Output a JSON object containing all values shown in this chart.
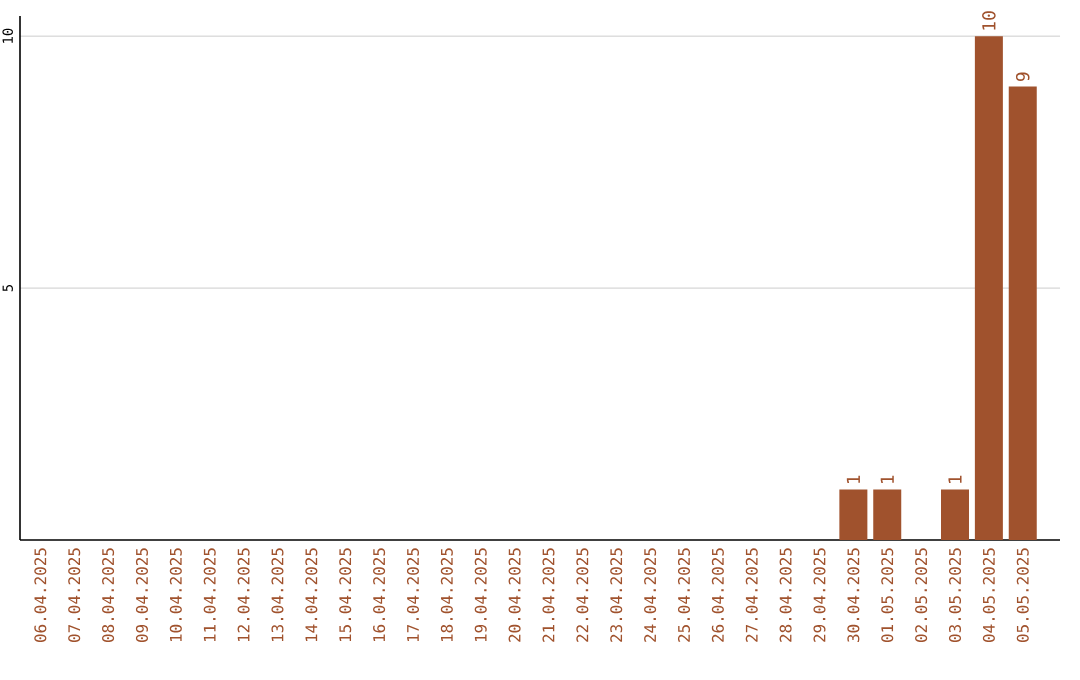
{
  "chart_data": {
    "type": "bar",
    "categories": [
      "06.04.2025",
      "07.04.2025",
      "08.04.2025",
      "09.04.2025",
      "10.04.2025",
      "11.04.2025",
      "12.04.2025",
      "13.04.2025",
      "14.04.2025",
      "15.04.2025",
      "16.04.2025",
      "17.04.2025",
      "18.04.2025",
      "19.04.2025",
      "20.04.2025",
      "21.04.2025",
      "22.04.2025",
      "23.04.2025",
      "24.04.2025",
      "25.04.2025",
      "26.04.2025",
      "27.04.2025",
      "28.04.2025",
      "29.04.2025",
      "30.04.2025",
      "01.05.2025",
      "02.05.2025",
      "03.05.2025",
      "04.05.2025",
      "05.05.2025"
    ],
    "values": [
      0,
      0,
      0,
      0,
      0,
      0,
      0,
      0,
      0,
      0,
      0,
      0,
      0,
      0,
      0,
      0,
      0,
      0,
      0,
      0,
      0,
      0,
      0,
      0,
      1,
      1,
      0,
      1,
      10,
      9
    ],
    "value_labels": [
      null,
      null,
      null,
      null,
      null,
      null,
      null,
      null,
      null,
      null,
      null,
      null,
      null,
      null,
      null,
      null,
      null,
      null,
      null,
      null,
      null,
      null,
      null,
      null,
      "1",
      "1",
      null,
      "1",
      "10",
      "9"
    ],
    "color": "#a0522d",
    "ylim": [
      0,
      10.4
    ],
    "yticks": [
      5,
      10
    ],
    "grid": "y"
  }
}
